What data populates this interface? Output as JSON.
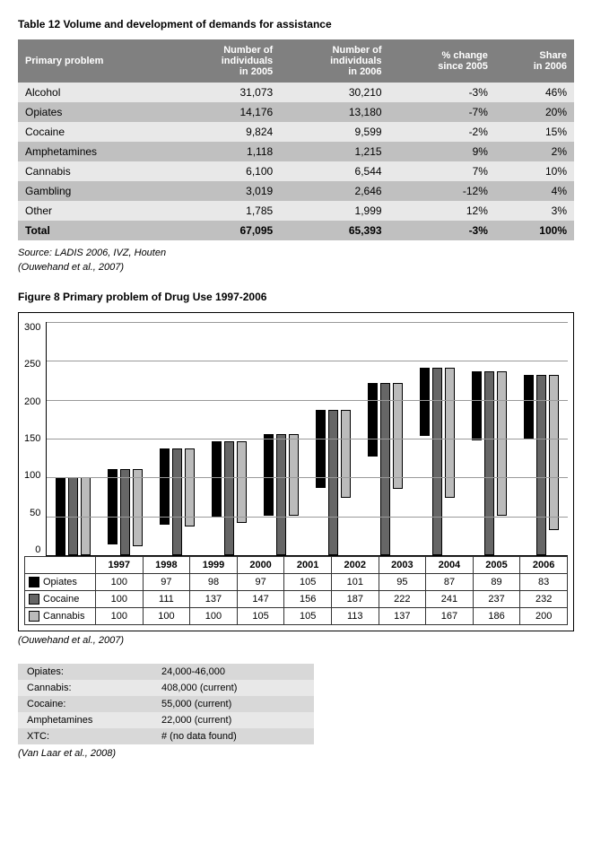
{
  "table12": {
    "title": "Table 12   Volume and development of demands for assistance",
    "headers": [
      "Primary problem",
      "Number of individuals in 2005",
      "Number of individuals in 2006",
      "% change since 2005",
      "Share in 2006"
    ],
    "rows": [
      [
        "Alcohol",
        "31,073",
        "30,210",
        "-3%",
        "46%"
      ],
      [
        "Opiates",
        "14,176",
        "13,180",
        "-7%",
        "20%"
      ],
      [
        "Cocaine",
        "9,824",
        "9,599",
        "-2%",
        "15%"
      ],
      [
        "Amphetamines",
        "1,118",
        "1,215",
        "9%",
        "2%"
      ],
      [
        "Cannabis",
        "6,100",
        "6,544",
        "7%",
        "10%"
      ],
      [
        "Gambling",
        "3,019",
        "2,646",
        "-12%",
        "4%"
      ],
      [
        "Other",
        "1,785",
        "1,999",
        "12%",
        "3%"
      ]
    ],
    "total": [
      "Total",
      "67,095",
      "65,393",
      "-3%",
      "100%"
    ],
    "source": "Source: LADIS 2006, IVZ, Houten",
    "cite": "(Ouwehand et al., 2007)"
  },
  "figure8": {
    "title": "Figure 8   Primary problem of Drug Use 1997-2006",
    "ymax": 300,
    "ytick_step": 50,
    "yticks": [
      "300",
      "250",
      "200",
      "150",
      "100",
      "50",
      "0"
    ],
    "grid_color": "#999999",
    "colors": {
      "opiates": "#000000",
      "cocaine": "#666666",
      "cannabis": "#bbbbbb"
    },
    "years": [
      "1997",
      "1998",
      "1999",
      "2000",
      "2001",
      "2002",
      "2003",
      "2004",
      "2005",
      "2006"
    ],
    "series": [
      {
        "name": "Opiates",
        "values": [
          100,
          97,
          98,
          97,
          105,
          101,
          95,
          87,
          89,
          83
        ]
      },
      {
        "name": "Cocaine",
        "values": [
          100,
          111,
          137,
          147,
          156,
          187,
          222,
          241,
          237,
          232
        ]
      },
      {
        "name": "Cannabis",
        "values": [
          100,
          100,
          100,
          105,
          105,
          113,
          137,
          167,
          186,
          200
        ]
      }
    ],
    "cite": "(Ouwehand et al., 2007)"
  },
  "small_table": {
    "rows": [
      [
        "Opiates:",
        "24,000-46,000"
      ],
      [
        "Cannabis:",
        "408,000 (current)"
      ],
      [
        "Cocaine:",
        "55,000 (current)"
      ],
      [
        "Amphetamines",
        "22,000 (current)"
      ],
      [
        "XTC:",
        "# (no data found)"
      ]
    ],
    "cite": "(Van Laar et al., 2008)"
  }
}
